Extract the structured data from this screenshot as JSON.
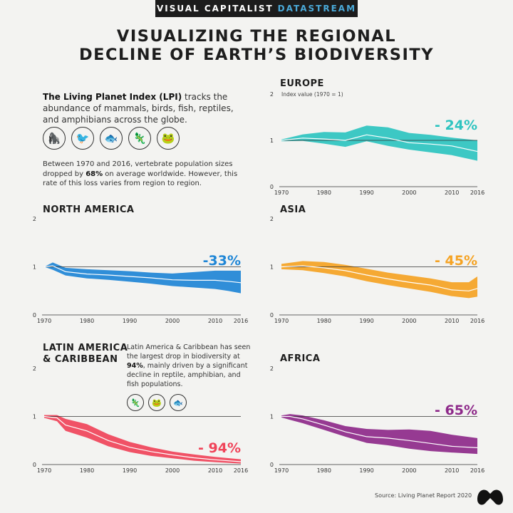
{
  "header": {
    "brand": "VISUAL CAPITALIST",
    "brand_accent": "DATASTREAM",
    "title_line1": "VISUALIZING THE REGIONAL",
    "title_line2": "DECLINE OF EARTH’S BIODIVERSITY"
  },
  "intro": {
    "bold": "The Living Planet Index (LPI)",
    "text": " tracks the abundance of mammals, birds, fish, reptiles, and amphibians across the globe.",
    "icons": [
      "mammal-icon",
      "bird-icon",
      "fish-icon",
      "reptile-icon",
      "amphibian-icon"
    ]
  },
  "note": {
    "part1": "Between 1970 and 2016, vertebrate population sizes dropped by ",
    "bold": "68%",
    "part2": " on average worldwide. However, this rate of this loss varies from region to region."
  },
  "latam_note": {
    "part1": "Latin America & Caribbean has seen the largest drop in biodiversity at ",
    "bold": "94%",
    "part2": ", mainly driven by a significant decline in reptile, amphibian, and fish populations.",
    "icons": [
      "reptile-icon",
      "amphibian-icon",
      "fish-icon"
    ]
  },
  "source": "Source: Living Planet Report 2020",
  "chart_data": [
    {
      "type": "area",
      "region": "EUROPE",
      "ylabel": "Index value (1970 = 1)",
      "color": "#2ec4c0",
      "change": "- 24%",
      "ylim": [
        0,
        2
      ],
      "y_ticks": [
        "0",
        "1",
        "2"
      ],
      "x_ticks": [
        "1970",
        "1980",
        "1990",
        "2000",
        "2010",
        "2016"
      ],
      "x": [
        1970,
        1975,
        1980,
        1985,
        1990,
        1995,
        2000,
        2005,
        2010,
        2016
      ],
      "index": [
        1.0,
        1.05,
        1.03,
        1.0,
        1.12,
        1.05,
        0.95,
        0.92,
        0.88,
        0.76
      ],
      "upper": [
        1.02,
        1.13,
        1.18,
        1.17,
        1.32,
        1.28,
        1.16,
        1.12,
        1.06,
        1.0
      ],
      "lower": [
        0.98,
        0.99,
        0.93,
        0.86,
        0.98,
        0.88,
        0.8,
        0.74,
        0.68,
        0.56
      ]
    },
    {
      "type": "area",
      "region": "NORTH AMERICA",
      "color": "#1f86d6",
      "change": "-33%",
      "ylim": [
        0,
        2
      ],
      "y_ticks": [
        "0",
        "1",
        "2"
      ],
      "x_ticks": [
        "1970",
        "1980",
        "1990",
        "2000",
        "2010",
        "2016"
      ],
      "x": [
        1970,
        1972,
        1975,
        1980,
        1985,
        1990,
        1995,
        2000,
        2005,
        2010,
        2013,
        2016
      ],
      "index": [
        1.0,
        1.02,
        0.9,
        0.85,
        0.83,
        0.8,
        0.77,
        0.73,
        0.72,
        0.72,
        0.7,
        0.67
      ],
      "upper": [
        1.0,
        1.09,
        0.98,
        0.95,
        0.93,
        0.91,
        0.88,
        0.86,
        0.89,
        0.92,
        0.92,
        0.92
      ],
      "lower": [
        1.0,
        0.94,
        0.82,
        0.76,
        0.73,
        0.69,
        0.65,
        0.6,
        0.57,
        0.54,
        0.5,
        0.45
      ]
    },
    {
      "type": "area",
      "region": "ASIA",
      "color": "#f5a324",
      "change": "- 45%",
      "ylim": [
        0,
        2
      ],
      "y_ticks": [
        "0",
        "1",
        "2"
      ],
      "x_ticks": [
        "1970",
        "1980",
        "1990",
        "2000",
        "2010",
        "2016"
      ],
      "x": [
        1970,
        1975,
        1980,
        1985,
        1990,
        1995,
        2000,
        2005,
        2010,
        2014,
        2016
      ],
      "index": [
        1.0,
        1.02,
        0.98,
        0.92,
        0.83,
        0.75,
        0.68,
        0.62,
        0.52,
        0.5,
        0.55
      ],
      "upper": [
        1.06,
        1.12,
        1.1,
        1.04,
        0.96,
        0.88,
        0.82,
        0.76,
        0.68,
        0.68,
        0.8
      ],
      "lower": [
        0.95,
        0.93,
        0.87,
        0.8,
        0.7,
        0.62,
        0.55,
        0.48,
        0.39,
        0.35,
        0.38
      ]
    },
    {
      "type": "area",
      "region": "LATIN AMERICA & CARIBBEAN",
      "color": "#f0445a",
      "change": "- 94%",
      "ylim": [
        0,
        2
      ],
      "y_ticks": [
        "0",
        "1",
        "2"
      ],
      "x_ticks": [
        "1970",
        "1980",
        "1990",
        "2000",
        "2010",
        "2016"
      ],
      "x": [
        1970,
        1973,
        1975,
        1980,
        1985,
        1990,
        1995,
        2000,
        2005,
        2010,
        2016
      ],
      "index": [
        1.0,
        0.97,
        0.82,
        0.7,
        0.5,
        0.36,
        0.27,
        0.2,
        0.14,
        0.1,
        0.06
      ],
      "upper": [
        1.03,
        1.03,
        0.95,
        0.84,
        0.63,
        0.47,
        0.36,
        0.27,
        0.21,
        0.16,
        0.11
      ],
      "lower": [
        0.97,
        0.9,
        0.7,
        0.56,
        0.38,
        0.26,
        0.18,
        0.13,
        0.08,
        0.05,
        0.02
      ]
    },
    {
      "type": "area",
      "region": "AFRICA",
      "color": "#8e2a8a",
      "change": "- 65%",
      "ylim": [
        0,
        2
      ],
      "y_ticks": [
        "0",
        "1",
        "2"
      ],
      "x_ticks": [
        "1970",
        "1980",
        "1990",
        "2000",
        "2010",
        "2016"
      ],
      "x": [
        1970,
        1972,
        1975,
        1980,
        1985,
        1990,
        1995,
        2000,
        2005,
        2010,
        2016
      ],
      "index": [
        1.0,
        1.0,
        0.95,
        0.82,
        0.68,
        0.58,
        0.55,
        0.5,
        0.44,
        0.38,
        0.35
      ],
      "upper": [
        1.02,
        1.05,
        1.02,
        0.92,
        0.8,
        0.74,
        0.72,
        0.73,
        0.7,
        0.62,
        0.55
      ],
      "lower": [
        0.98,
        0.93,
        0.86,
        0.72,
        0.58,
        0.45,
        0.4,
        0.33,
        0.28,
        0.25,
        0.22
      ]
    }
  ]
}
